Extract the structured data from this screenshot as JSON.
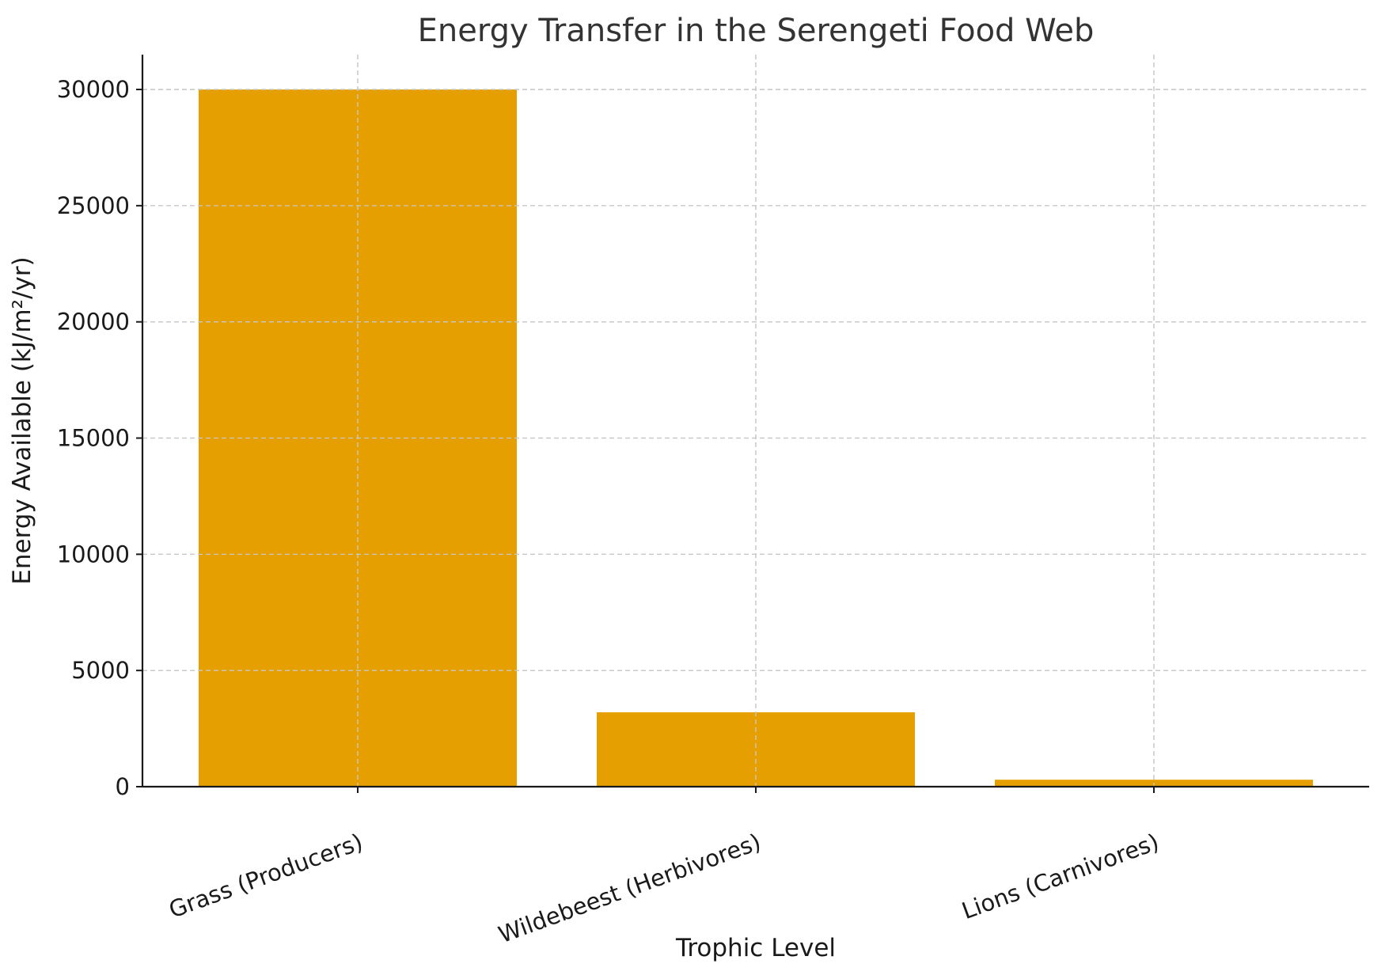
{
  "chart_data": {
    "type": "bar",
    "title": "Energy Transfer in the Serengeti Food Web",
    "xlabel": "Trophic Level",
    "ylabel": "Energy Available (kJ/m²/yr)",
    "categories": [
      "Grass (Producers)",
      "Wildebeest (Herbivores)",
      "Lions (Carnivores)"
    ],
    "values": [
      30000,
      3200,
      300
    ],
    "ylim": [
      0,
      31500
    ],
    "yticks": [
      0,
      5000,
      10000,
      15000,
      20000,
      25000,
      30000
    ],
    "ytick_labels": [
      "0",
      "5000",
      "10000",
      "15000",
      "20000",
      "25000",
      "30000"
    ],
    "grid": true,
    "bar_color": "#E69F00"
  }
}
